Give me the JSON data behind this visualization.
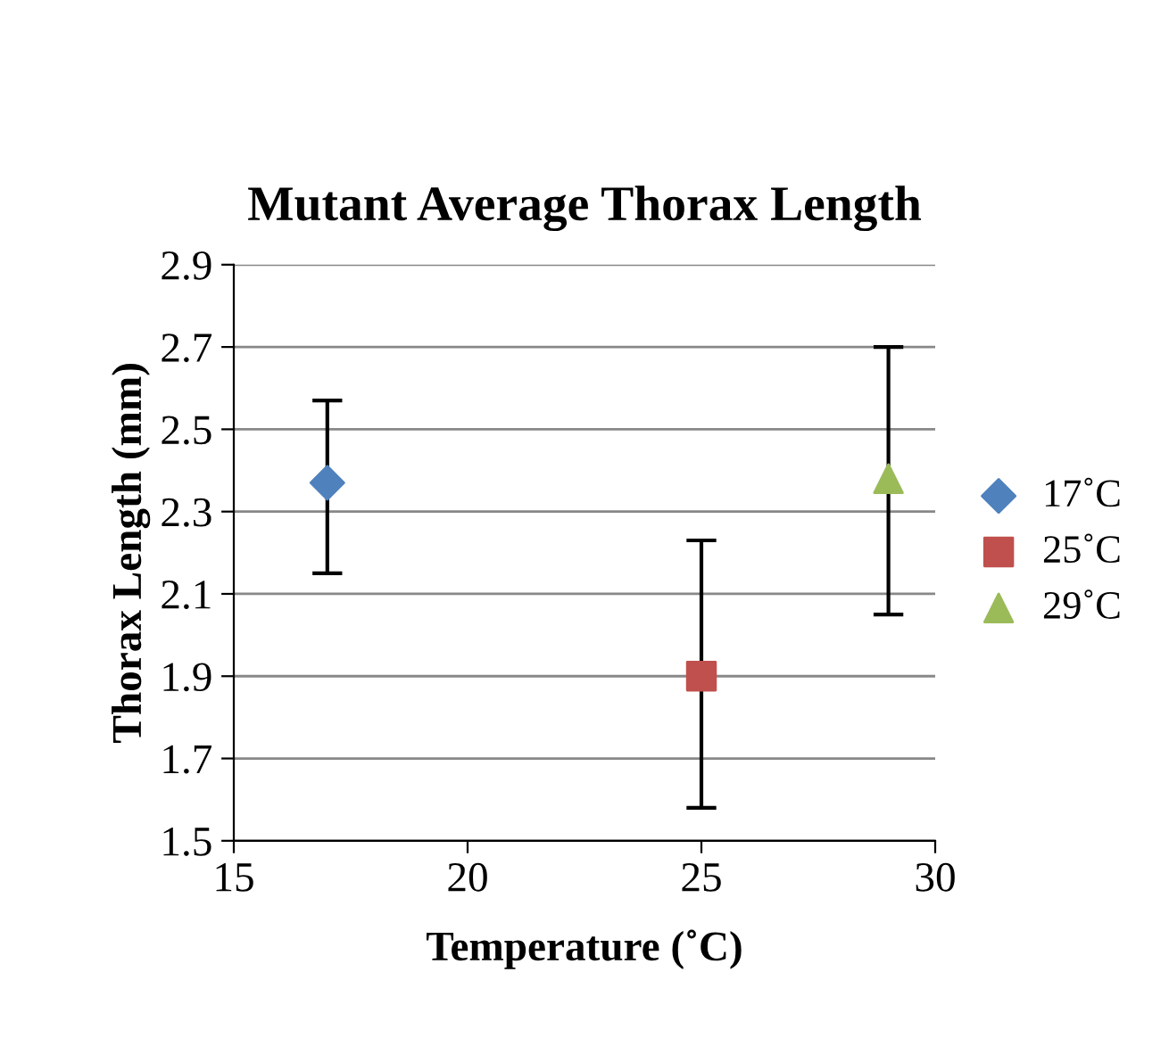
{
  "chart_data": {
    "type": "scatter",
    "title": "Mutant Average Thorax Length",
    "xlabel": "Temperature (˚C)",
    "ylabel": "Thorax Length (mm)",
    "xlim": [
      15,
      30
    ],
    "xticks": [
      15,
      20,
      25,
      30
    ],
    "ylim": [
      1.5,
      2.9
    ],
    "yticks": [
      1.5,
      1.7,
      1.9,
      2.1,
      2.3,
      2.5,
      2.7,
      2.9
    ],
    "grid": "y",
    "legend": "right",
    "series": [
      {
        "name": "17˚C",
        "color": "#4f81bd",
        "marker": "diamond",
        "x": [
          17
        ],
        "values": [
          2.37
        ],
        "errors": [
          [
            2.15,
            2.57
          ]
        ]
      },
      {
        "name": "25˚C",
        "color": "#c0504d",
        "marker": "square",
        "x": [
          25
        ],
        "values": [
          1.9
        ],
        "errors": [
          [
            1.58,
            2.23
          ]
        ]
      },
      {
        "name": "29˚C",
        "color": "#9bbb59",
        "marker": "triangle",
        "x": [
          29
        ],
        "values": [
          2.38
        ],
        "errors": [
          [
            2.05,
            2.7
          ]
        ]
      }
    ]
  }
}
